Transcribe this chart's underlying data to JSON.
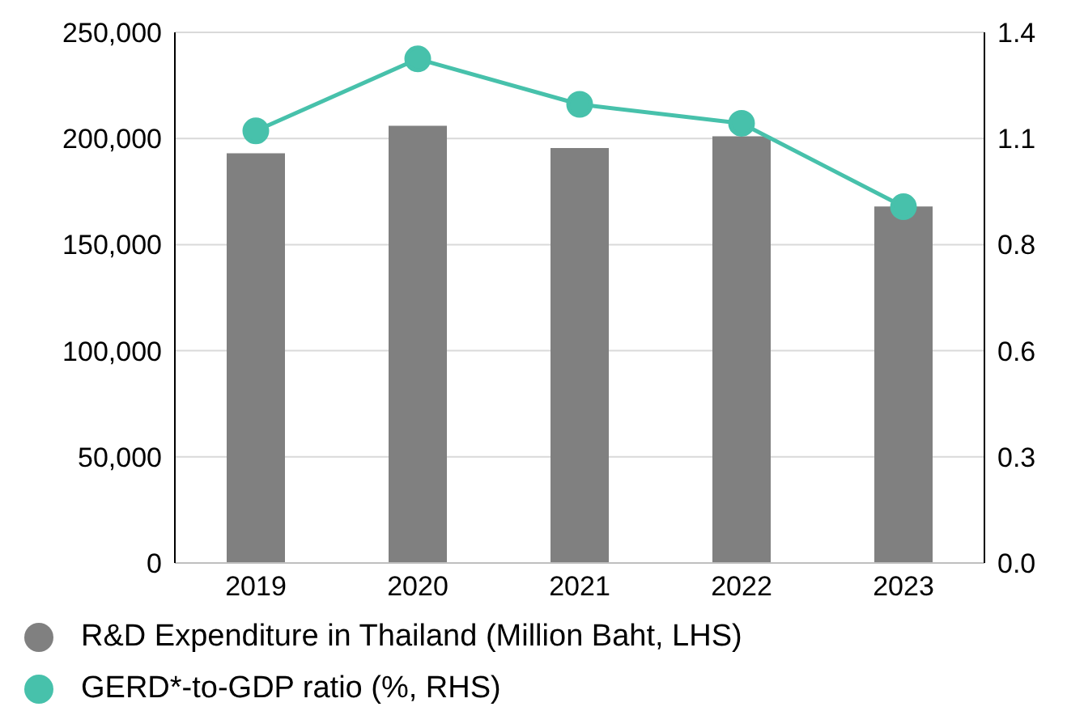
{
  "chart_data": {
    "type": "bar",
    "categories": [
      "2019",
      "2020",
      "2021",
      "2022",
      "2023"
    ],
    "series": [
      {
        "name": "R&D Expenditure in Thailand (Million Baht, LHS)",
        "color": "#808080",
        "values": [
          193000,
          206000,
          195500,
          201000,
          168000
        ]
      },
      {
        "name": "GERD*-to-GDP ratio (%, RHS)",
        "type": "line",
        "axis": "y2",
        "color": "#47c1ab",
        "values": [
          1.14,
          1.33,
          1.21,
          1.16,
          0.94
        ]
      }
    ],
    "ylim": [
      0,
      250000
    ],
    "yticks": [
      0,
      {
        "value": 50000,
        "label": "50,000"
      },
      {
        "value": 100000,
        "label": "100,000"
      },
      {
        "value": 150000,
        "label": "150,000"
      },
      {
        "value": 200000,
        "label": "200,000"
      },
      {
        "value": 250000,
        "label": "250,000"
      }
    ],
    "y2lim": [
      0,
      1.4
    ],
    "y2ticks": [
      {
        "value": 0,
        "label": "0.0"
      },
      {
        "value": 0.28,
        "label": "0.3"
      },
      {
        "value": 0.56,
        "label": "0.6"
      },
      {
        "value": 0.84,
        "label": "0.8"
      },
      {
        "value": 1.12,
        "label": "1.1"
      },
      {
        "value": 1.4,
        "label": "1.4"
      }
    ],
    "grid": "y",
    "legend": "bottom",
    "marker": "circle",
    "line_style": "solid"
  }
}
